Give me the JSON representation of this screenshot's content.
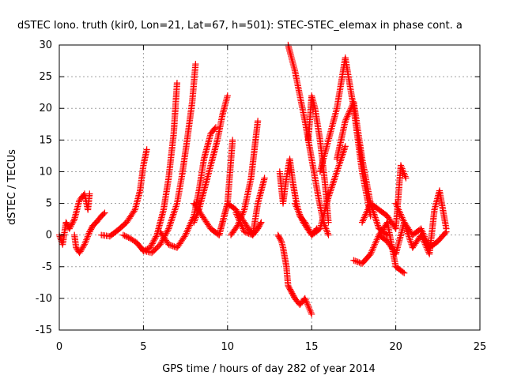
{
  "chart_data": {
    "type": "scatter",
    "title": "dSTEC Iono. truth (kir0, Lon=21, Lat=67, h=501): STEC-STEC_elemax in phase cont. a",
    "xlabel": "GPS time / hours of day 282 of year 2014",
    "ylabel": "dSTEC  / TECUs",
    "xlim": [
      0,
      25
    ],
    "ylim": [
      -15,
      30
    ],
    "x_ticks": [
      0,
      5,
      10,
      15,
      20,
      25
    ],
    "y_ticks": [
      -15,
      -10,
      -5,
      0,
      5,
      10,
      15,
      20,
      25,
      30
    ],
    "x_tick_labels": [
      "0",
      "5",
      "10",
      "15",
      "20",
      "25"
    ],
    "y_tick_labels": [
      "-15",
      "-10",
      "-5",
      "0",
      "5",
      "10",
      "15",
      "20",
      "25",
      "30"
    ],
    "grid": true,
    "marker": "plus",
    "series_color": "#ff0000",
    "series": [
      {
        "x": [
          0.0,
          0.2,
          0.4,
          0.6,
          0.9,
          1.2,
          1.5,
          1.7,
          1.8
        ],
        "y": [
          0.0,
          -1.5,
          2.0,
          1.0,
          2.5,
          5.5,
          6.5,
          4.0,
          6.5
        ]
      },
      {
        "x": [
          0.9,
          1.0,
          1.2,
          1.5,
          1.8,
          2.0,
          2.2,
          2.5,
          2.7
        ],
        "y": [
          0.0,
          -2.0,
          -2.8,
          -1.5,
          0.5,
          1.5,
          2.0,
          3.0,
          3.5
        ]
      },
      {
        "x": [
          2.5,
          3.0,
          3.5,
          4.0,
          4.5,
          4.8,
          5.0,
          5.2
        ],
        "y": [
          0.0,
          -0.2,
          0.8,
          2.0,
          4.0,
          7.0,
          11.0,
          13.5
        ]
      },
      {
        "x": [
          3.8,
          4.2,
          4.6,
          5.0,
          5.4,
          5.8,
          6.2,
          6.5,
          6.8,
          7.0
        ],
        "y": [
          0.0,
          -0.5,
          -1.2,
          -2.5,
          -2.0,
          0.0,
          4.0,
          9.0,
          16.0,
          24.0
        ]
      },
      {
        "x": [
          5.0,
          5.5,
          6.0,
          6.5,
          7.0,
          7.3,
          7.6,
          7.9,
          8.1
        ],
        "y": [
          -2.5,
          -2.8,
          -1.5,
          1.0,
          5.0,
          9.5,
          15.0,
          21.0,
          27.0
        ]
      },
      {
        "x": [
          6.0,
          6.5,
          7.0,
          7.5,
          8.0,
          8.3,
          8.6,
          9.0,
          9.3
        ],
        "y": [
          0.5,
          -1.5,
          -2.0,
          0.0,
          3.0,
          7.0,
          12.0,
          16.0,
          17.0
        ]
      },
      {
        "x": [
          8.0,
          8.3,
          8.6,
          9.0,
          9.4,
          9.7,
          10.0
        ],
        "y": [
          2.0,
          4.0,
          7.0,
          11.0,
          15.0,
          19.0,
          22.0
        ]
      },
      {
        "x": [
          8.0,
          8.5,
          9.0,
          9.5,
          10.0,
          10.3
        ],
        "y": [
          5.0,
          3.0,
          1.0,
          0.0,
          5.0,
          15.0
        ]
      },
      {
        "x": [
          9.5,
          10.0,
          10.5,
          11.0,
          11.5,
          11.8,
          12.0
        ],
        "y": [
          0.0,
          5.0,
          4.0,
          2.0,
          0.0,
          1.0,
          2.0
        ]
      },
      {
        "x": [
          10.2,
          10.6,
          11.0,
          11.4,
          11.8
        ],
        "y": [
          0.0,
          1.5,
          4.0,
          9.0,
          18.0
        ]
      },
      {
        "x": [
          10.5,
          11.0,
          11.5,
          11.8,
          12.2
        ],
        "y": [
          3.5,
          0.5,
          0.0,
          5.0,
          9.0
        ]
      },
      {
        "x": [
          13.0,
          13.2,
          13.3,
          13.5,
          13.6,
          13.8,
          14.0,
          14.3,
          14.6,
          15.0
        ],
        "y": [
          0.0,
          -1.0,
          -2.0,
          -5.0,
          -8.0,
          -9.0,
          -10.0,
          -11.0,
          -10.0,
          -12.5
        ]
      },
      {
        "x": [
          13.1,
          13.3,
          13.5,
          13.7,
          13.9,
          14.1,
          14.3,
          14.6,
          15.0,
          15.3
        ],
        "y": [
          10.0,
          5.0,
          9.0,
          12.0,
          8.0,
          5.0,
          3.0,
          2.0,
          0.0,
          1.0
        ]
      },
      {
        "x": [
          13.6,
          13.8,
          14.0,
          14.3,
          14.6,
          15.0,
          15.4,
          15.7,
          16.0
        ],
        "y": [
          30.0,
          28.0,
          26.0,
          22.0,
          18.0,
          12.0,
          6.0,
          2.0,
          0.0
        ]
      },
      {
        "x": [
          14.8,
          15.0,
          15.2,
          15.5,
          15.8,
          16.0
        ],
        "y": [
          15.0,
          22.0,
          20.0,
          15.0,
          8.0,
          2.0
        ]
      },
      {
        "x": [
          14.0,
          14.5,
          15.0,
          15.5,
          16.0,
          16.5,
          17.0
        ],
        "y": [
          5.0,
          2.0,
          0.0,
          1.0,
          6.0,
          10.0,
          14.0
        ]
      },
      {
        "x": [
          15.5,
          16.0,
          16.5,
          17.0,
          17.5,
          18.0,
          18.5
        ],
        "y": [
          10.0,
          15.0,
          20.0,
          28.0,
          20.0,
          10.0,
          3.0
        ]
      },
      {
        "x": [
          16.5,
          17.0,
          17.5,
          18.0,
          18.5,
          19.0,
          19.5
        ],
        "y": [
          12.0,
          18.0,
          21.0,
          12.0,
          5.0,
          1.0,
          0.0
        ]
      },
      {
        "x": [
          17.5,
          18.0,
          18.5,
          19.0,
          19.5,
          20.0,
          20.5
        ],
        "y": [
          -4.0,
          -4.5,
          -3.0,
          0.0,
          2.0,
          -5.0,
          -6.0
        ]
      },
      {
        "x": [
          18.0,
          18.5,
          19.0,
          19.5,
          20.0,
          20.3,
          20.6
        ],
        "y": [
          2.0,
          5.0,
          4.0,
          3.0,
          1.0,
          11.0,
          9.0
        ]
      },
      {
        "x": [
          20.0,
          20.5,
          21.0,
          21.5,
          22.0,
          22.3,
          22.6,
          23.0
        ],
        "y": [
          5.0,
          2.0,
          -2.0,
          0.0,
          -3.0,
          4.0,
          7.0,
          1.0
        ]
      },
      {
        "x": [
          19.0,
          19.5,
          20.0,
          20.5,
          21.0,
          21.5,
          22.0,
          22.5,
          23.0
        ],
        "y": [
          0.0,
          -1.0,
          -3.0,
          2.0,
          0.0,
          1.0,
          -2.0,
          -1.0,
          0.5
        ]
      }
    ]
  }
}
